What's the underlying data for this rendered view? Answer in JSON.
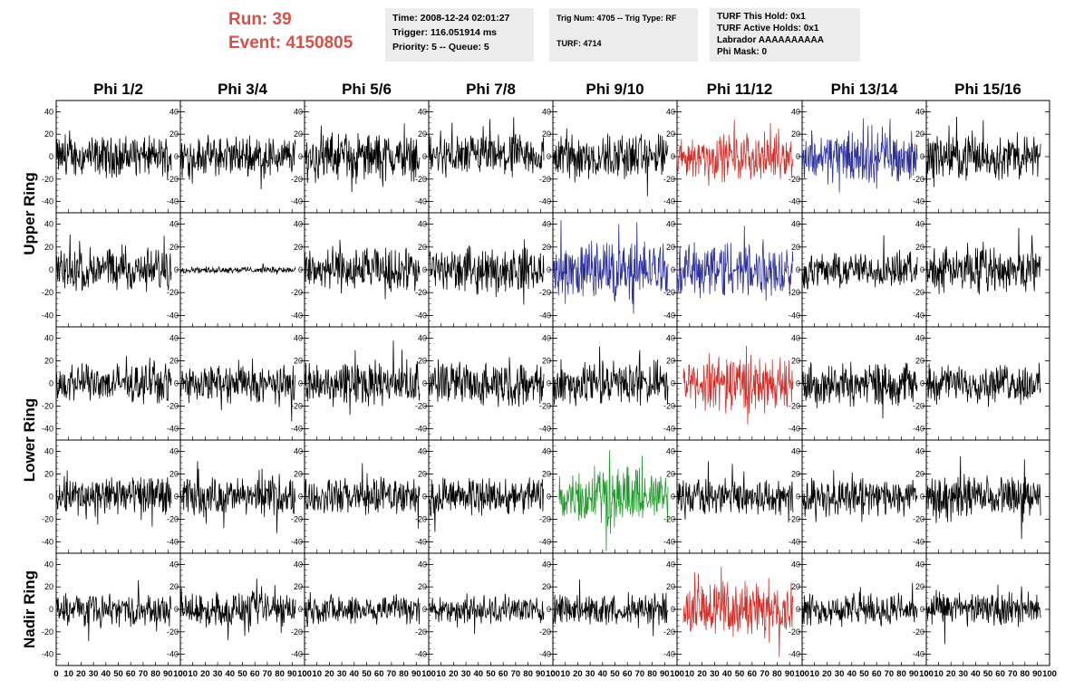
{
  "header": {
    "run_label": "Run:    39",
    "event_label": "Event: 4150805",
    "box1": [
      "Time: 2008-12-24 02:01:27",
      "Trigger: 116.051914 ms",
      "Priority: 5 -- Queue: 5"
    ],
    "box2": [
      "Trig Num: 4705 -- Trig Type: RF",
      "TURF: 4714"
    ],
    "box3": [
      "TURF This Hold: 0x1",
      "TURF Active Holds: 0x1",
      "Labrador AAAAAAAAAA",
      "Phi Mask: 0"
    ]
  },
  "columns": [
    "Phi 1/2",
    "Phi 3/4",
    "Phi 5/6",
    "Phi 7/8",
    "Phi 9/10",
    "Phi 11/12",
    "Phi 13/14",
    "Phi 15/16"
  ],
  "rings": [
    "Upper Ring",
    "Lower Ring",
    "Nadir Ring"
  ],
  "colors": {
    "black": "#000000",
    "red": "#d3302c",
    "blue": "#2b2f9b",
    "green": "#1f9a2a",
    "title_red": "#d6504a"
  },
  "chart_data": {
    "type": "line",
    "rows": 5,
    "cols": 8,
    "ylim": [
      -50,
      50
    ],
    "xlim": [
      0,
      100
    ],
    "y_ticks": [
      -40,
      -20,
      0,
      20,
      40
    ],
    "x_ticks": [
      0,
      10,
      20,
      30,
      40,
      50,
      60,
      70,
      80,
      90,
      100
    ],
    "x_tick_labels": [
      "0",
      "10",
      "20",
      "30",
      "40",
      "50",
      "60",
      "70",
      "80",
      "90",
      "100"
    ],
    "panel_colors": [
      [
        "black",
        "black",
        "black",
        "black",
        "black",
        "red",
        "blue",
        "black"
      ],
      [
        "black",
        "black",
        "black",
        "black",
        "blue",
        "blue",
        "black",
        "black"
      ],
      [
        "black",
        "black",
        "black",
        "black",
        "black",
        "red",
        "black",
        "black"
      ],
      [
        "black",
        "black",
        "black",
        "black",
        "green",
        "black",
        "black",
        "black"
      ],
      [
        "black",
        "black",
        "black",
        "black",
        "black",
        "red",
        "black",
        "black"
      ]
    ],
    "panel_amplitude": [
      [
        13,
        13,
        15,
        14,
        15,
        13,
        16,
        14
      ],
      [
        14,
        2,
        14,
        14,
        17,
        17,
        11,
        14
      ],
      [
        12,
        12,
        14,
        14,
        14,
        16,
        14,
        12
      ],
      [
        13,
        12,
        12,
        12,
        16,
        12,
        12,
        13
      ],
      [
        10,
        11,
        10,
        9,
        10,
        16,
        10,
        11
      ]
    ],
    "panel_span": [
      [
        [
          0,
          100
        ],
        [
          0,
          100
        ],
        [
          0,
          100
        ],
        [
          0,
          100
        ],
        [
          0,
          100
        ],
        [
          0,
          100
        ],
        [
          0,
          100
        ],
        [
          0,
          100
        ]
      ],
      [
        [
          0,
          100
        ],
        [
          0,
          100
        ],
        [
          0,
          100
        ],
        [
          0,
          100
        ],
        [
          0,
          100
        ],
        [
          0,
          100
        ],
        [
          0,
          100
        ],
        [
          0,
          100
        ]
      ],
      [
        [
          0,
          100
        ],
        [
          0,
          100
        ],
        [
          0,
          100
        ],
        [
          0,
          100
        ],
        [
          0,
          100
        ],
        [
          5,
          100
        ],
        [
          0,
          100
        ],
        [
          0,
          100
        ]
      ],
      [
        [
          0,
          100
        ],
        [
          0,
          100
        ],
        [
          0,
          100
        ],
        [
          0,
          100
        ],
        [
          5,
          100
        ],
        [
          0,
          100
        ],
        [
          0,
          100
        ],
        [
          0,
          100
        ]
      ],
      [
        [
          0,
          100
        ],
        [
          0,
          100
        ],
        [
          0,
          100
        ],
        [
          0,
          100
        ],
        [
          0,
          100
        ],
        [
          5,
          100
        ],
        [
          0,
          100
        ],
        [
          0,
          100
        ]
      ]
    ]
  }
}
